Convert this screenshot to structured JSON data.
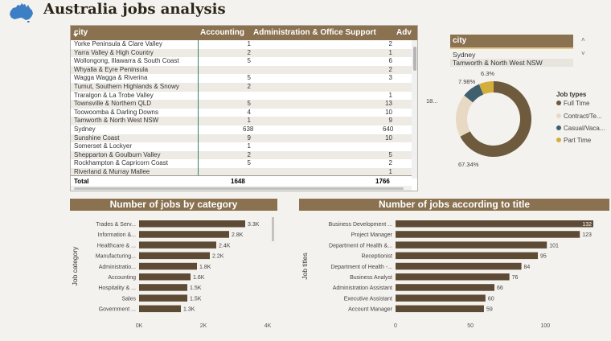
{
  "header": {
    "title": "Australia jobs analysis",
    "logo_icon": "australia-map-icon"
  },
  "table": {
    "columns": [
      "city",
      "Accounting",
      "Administration & Office Support",
      "Adv"
    ],
    "rows": [
      [
        "Yorke Peninsula & Clare Valley",
        "1",
        "2"
      ],
      [
        "Yarra Valley & High Country",
        "2",
        "1"
      ],
      [
        "Wollongong, Illawarra & South Coast",
        "5",
        "6"
      ],
      [
        "Whyalla & Eyre Peninsula",
        "",
        "2"
      ],
      [
        "Wagga Wagga & Riverina",
        "5",
        "3"
      ],
      [
        "Tumut, Southern Highlands & Snowy",
        "2",
        ""
      ],
      [
        "Traralgon & La Trobe Valley",
        "",
        "1"
      ],
      [
        "Townsville & Northern QLD",
        "5",
        "13"
      ],
      [
        "Toowoomba & Darling Downs",
        "4",
        "10"
      ],
      [
        "Tamworth & North West NSW",
        "1",
        "9"
      ],
      [
        "Sydney",
        "638",
        "640"
      ],
      [
        "Sunshine Coast",
        "9",
        "10"
      ],
      [
        "Somerset & Lockyer",
        "1",
        ""
      ],
      [
        "Shepparton & Goulburn Valley",
        "2",
        "5"
      ],
      [
        "Rockhampton & Capricorn Coast",
        "5",
        "2"
      ],
      [
        "Riverland & Murray Mallee",
        "",
        "1"
      ]
    ],
    "total": [
      "Total",
      "1648",
      "1766"
    ]
  },
  "slicer": {
    "header": "city",
    "items": [
      "Sydney",
      "Tamworth & North West NSW"
    ],
    "up_glyph": "˄",
    "down_glyph": "˅"
  },
  "donut": {
    "legend_title": "Job types",
    "slices": [
      {
        "name": "Full Time",
        "label": "Full Time",
        "value": 67.34,
        "text": "67.34%",
        "color": "#6e5a3d"
      },
      {
        "name": "Contract/Temp",
        "label": "Contract/Te...",
        "value": 18.4,
        "text": "18...",
        "color": "#e8d9c4"
      },
      {
        "name": "Casual/Vacation",
        "label": "Casual/Vaca...",
        "value": 7.98,
        "text": "7.98%",
        "color": "#3f5f6e"
      },
      {
        "name": "Part Time",
        "label": "Part Time",
        "value": 6.3,
        "text": "6.3%",
        "color": "#d4ae3c"
      }
    ]
  },
  "chart_data": [
    {
      "type": "bar",
      "title": "Number of jobs by category",
      "ylabel": "Job category",
      "categories": [
        "Trades & Serv...",
        "Information &...",
        "Healthcare & ...",
        "Manufacturing...",
        "Administratio...",
        "Accounting",
        "Hospitality & ...",
        "Sales",
        "Government ..."
      ],
      "values": [
        3300,
        2800,
        2400,
        2200,
        1800,
        1600,
        1500,
        1500,
        1300
      ],
      "value_labels": [
        "3.3K",
        "2.8K",
        "2.4K",
        "2.2K",
        "1.8K",
        "1.6K",
        "1.5K",
        "1.5K",
        "1.3K"
      ],
      "xlim": [
        0,
        4000
      ],
      "xticks": [
        "0K",
        "2K",
        "4K"
      ],
      "xtick_values": [
        0,
        2000,
        4000
      ],
      "bar_color": "#5e4b35"
    },
    {
      "type": "bar",
      "title": "Number of jobs according to title",
      "ylabel": "Job titles",
      "categories": [
        "Business Development ...",
        "Project Manager",
        "Department of Health &...",
        "Receptionist",
        "Department of Health -...",
        "Business Analyst",
        "Administration Assistant",
        "Executive Assistant",
        "Account Manager"
      ],
      "values": [
        132,
        123,
        101,
        95,
        84,
        76,
        66,
        60,
        59
      ],
      "value_labels": [
        "132",
        "123",
        "101",
        "95",
        "84",
        "76",
        "66",
        "60",
        "59"
      ],
      "xlim": [
        0,
        132
      ],
      "xticks": [
        "0",
        "50",
        "100"
      ],
      "xtick_values": [
        0,
        50,
        100
      ],
      "bar_color": "#5e4b35"
    }
  ]
}
